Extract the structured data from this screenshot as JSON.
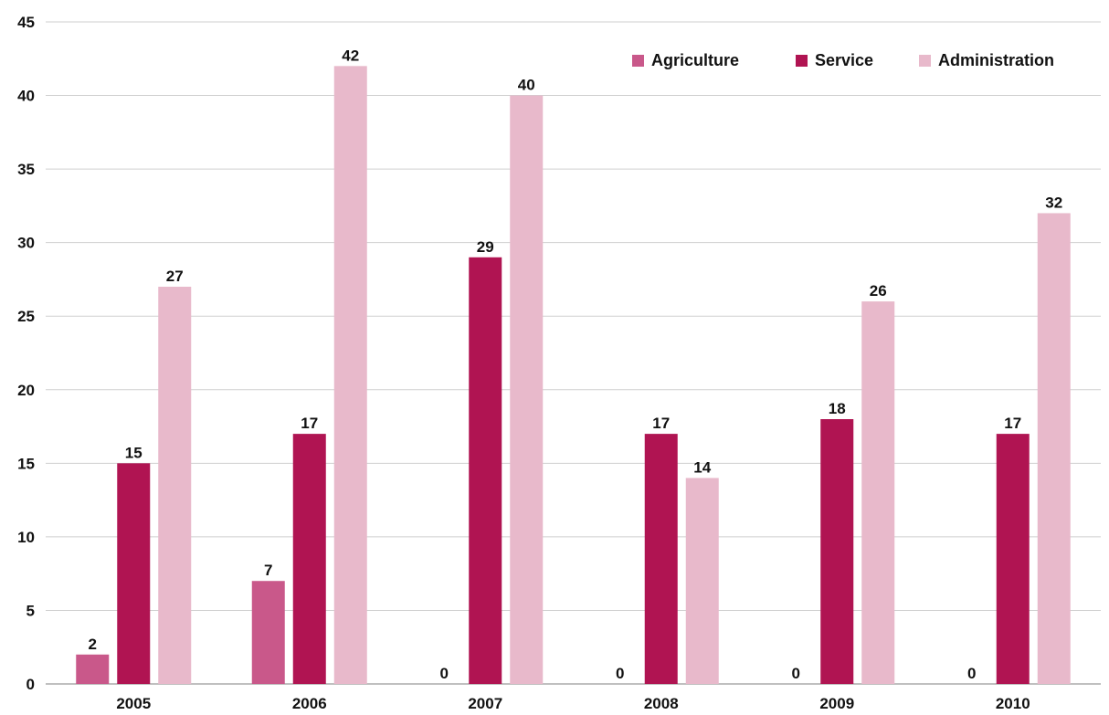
{
  "chart_data": {
    "type": "bar",
    "title": "",
    "xlabel": "",
    "ylabel": "",
    "categories": [
      "2005",
      "2006",
      "2007",
      "2008",
      "2009",
      "2010"
    ],
    "series": [
      {
        "name": "Agriculture",
        "color": "#c9588a",
        "values": [
          2,
          7,
          0,
          0,
          0,
          0
        ]
      },
      {
        "name": "Service",
        "color": "#b01452",
        "values": [
          15,
          17,
          29,
          17,
          18,
          17
        ]
      },
      {
        "name": "Administration",
        "color": "#e8b9cb",
        "values": [
          27,
          42,
          40,
          14,
          26,
          32
        ]
      }
    ],
    "ylim": [
      0,
      45
    ],
    "yticks": [
      0,
      5,
      10,
      15,
      20,
      25,
      30,
      35,
      40,
      45
    ],
    "grid": true,
    "legend": "top-right",
    "data_labels": true
  }
}
